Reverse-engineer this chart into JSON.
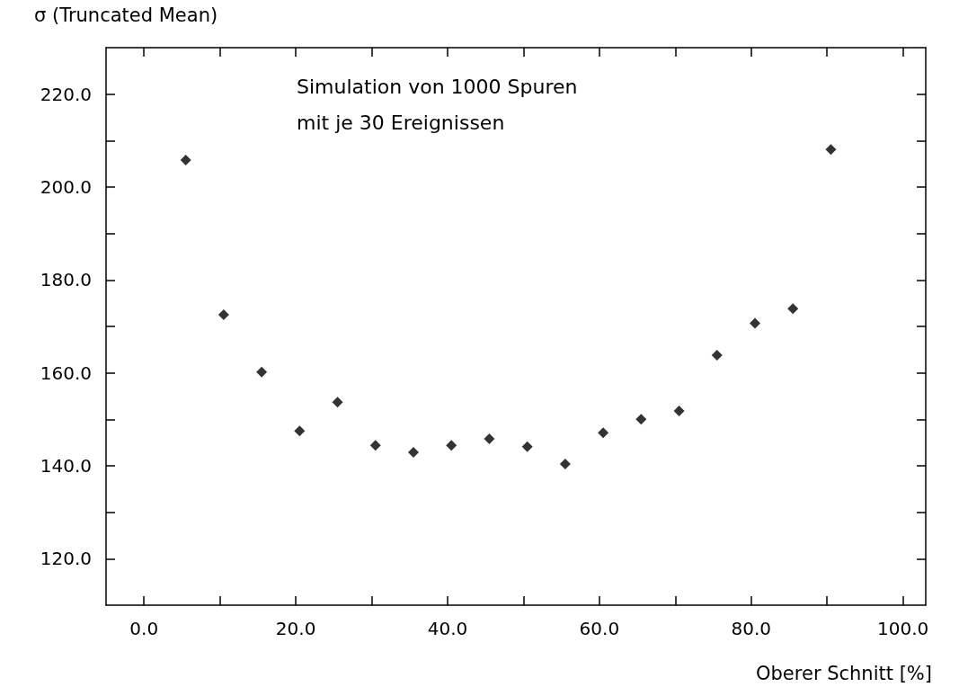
{
  "chart_data": {
    "type": "scatter",
    "ylabel": "σ (Truncated Mean)",
    "xlabel": "Oberer Schnitt [%]",
    "annotations": [
      "Simulation von 1000 Spuren",
      "mit je 30 Ereignissen"
    ],
    "x": [
      5.5,
      10.5,
      15.5,
      20.5,
      25.5,
      30.5,
      35.5,
      40.5,
      45.5,
      50.5,
      55.5,
      60.5,
      65.5,
      70.5,
      75.5,
      80.5,
      85.5,
      90.5
    ],
    "series": [
      {
        "color": "#000000",
        "values": [
          205.8,
          172.5,
          160.2,
          147.5,
          153.7,
          144.4,
          142.9,
          144.4,
          145.8,
          144.1,
          140.4,
          147.1,
          150.0,
          151.8,
          163.8,
          170.7,
          173.8,
          208.1
        ]
      }
    ],
    "marker": "diamond",
    "grid": false,
    "xlim": [
      -5,
      103
    ],
    "ylim": [
      110,
      230
    ],
    "xticks": [
      {
        "value": 0,
        "label": "0.0"
      },
      {
        "value": 10,
        "label": null
      },
      {
        "value": 20,
        "label": "20.0"
      },
      {
        "value": 30,
        "label": null
      },
      {
        "value": 40,
        "label": "40.0"
      },
      {
        "value": 50,
        "label": null
      },
      {
        "value": 60,
        "label": "60.0"
      },
      {
        "value": 70,
        "label": null
      },
      {
        "value": 80,
        "label": "80.0"
      },
      {
        "value": 90,
        "label": null
      },
      {
        "value": 100,
        "label": "100.0"
      }
    ],
    "yticks": [
      {
        "value": 120,
        "label": "120.0"
      },
      {
        "value": 130,
        "label": null
      },
      {
        "value": 140,
        "label": "140.0"
      },
      {
        "value": 150,
        "label": null
      },
      {
        "value": 160,
        "label": "160.0"
      },
      {
        "value": 170,
        "label": null
      },
      {
        "value": 180,
        "label": "180.0"
      },
      {
        "value": 190,
        "label": null
      },
      {
        "value": 200,
        "label": "200.0"
      },
      {
        "value": 210,
        "label": null
      },
      {
        "value": 220,
        "label": "220.0"
      }
    ]
  }
}
